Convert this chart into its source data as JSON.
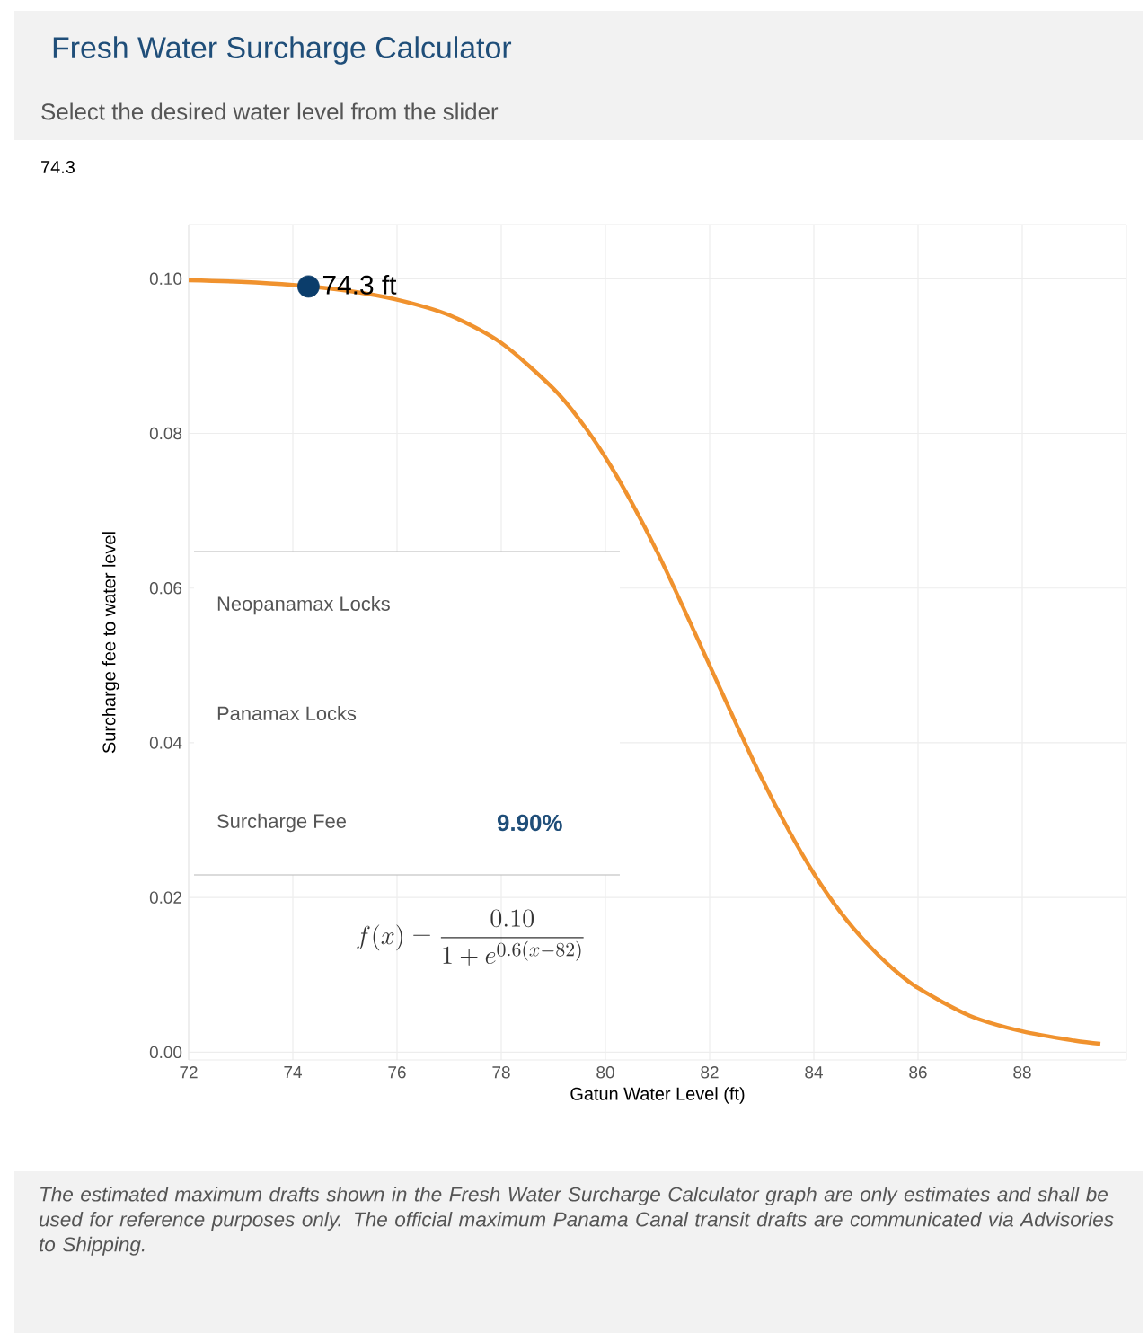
{
  "chart_data": {
    "type": "line",
    "title": "Fresh Water Surcharge Calculator",
    "subtitle": "Select the desired water level from the slider",
    "xlabel": "Gatun Water Level (ft)",
    "ylabel": "Surcharge fee to water level",
    "xlim": [
      72,
      90
    ],
    "ylim": [
      -0.001,
      0.107
    ],
    "xticks": [
      72,
      74,
      76,
      78,
      80,
      82,
      84,
      86,
      88
    ],
    "yticks": [
      {
        "value": 0,
        "label": "0.00"
      },
      {
        "value": 0.02,
        "label": "0.02"
      },
      {
        "value": 0.04,
        "label": "0.04"
      },
      {
        "value": 0.06,
        "label": "0.06"
      },
      {
        "value": 0.08,
        "label": "0.08"
      },
      {
        "value": 0.1,
        "label": "0.10"
      }
    ],
    "grid": true,
    "series": [
      {
        "color": "#f0922e",
        "marker": "none",
        "x": [
          72,
          73,
          74,
          75,
          76,
          77,
          78,
          79,
          79.5,
          80,
          80.5,
          81,
          81.5,
          82,
          82.5,
          83,
          83.5,
          84,
          84.5,
          85,
          85.5,
          86,
          87,
          88,
          89,
          89.5
        ],
        "values": [
          0.0998,
          0.0996,
          0.0992,
          0.0985,
          0.0973,
          0.0953,
          0.0917,
          0.0858,
          0.0818,
          0.0769,
          0.0711,
          0.0646,
          0.0574,
          0.05,
          0.0426,
          0.0354,
          0.0289,
          0.0231,
          0.0182,
          0.0142,
          0.0109,
          0.0083,
          0.0047,
          0.0027,
          0.0015,
          0.0011
        ]
      },
      {
        "type": "scatter",
        "color": "#0b3d6b",
        "marker": "circle",
        "x": [
          74.3
        ],
        "values": [
          0.099
        ]
      }
    ],
    "annotations": [
      {
        "text": "74.3 ft",
        "x": 74.3,
        "y": 0.099
      },
      "74.3",
      "Neopanamax Locks",
      "Panamax Locks",
      "Surcharge Fee",
      "9.90%",
      "f(x) = \\frac{0.10}{1+e^{0.6(x-82)}}",
      "The estimated maximum drafts shown in the Fresh Water Surcharge Calculator graph are only estimates and shall be used for reference purposes only. The official maximum Panama Canal transit drafts are communicated via Advisories to Shipping."
    ]
  }
}
